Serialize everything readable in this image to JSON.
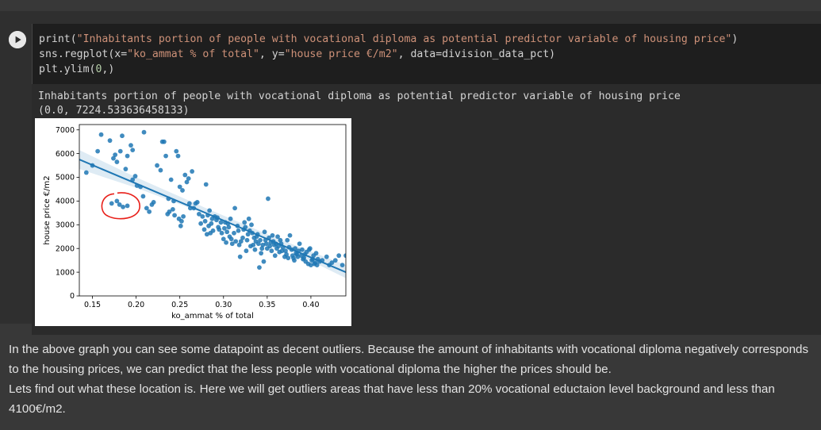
{
  "code_cell": {
    "lines": [
      [
        {
          "t": "print(",
          "c": "plain"
        },
        {
          "t": "\"Inhabitants portion of people with vocational diploma as potential predictor variable of housing price\"",
          "c": "str"
        },
        {
          "t": ")",
          "c": "plain"
        }
      ],
      [
        {
          "t": "sns.regplot(x=",
          "c": "plain"
        },
        {
          "t": "\"ko_ammat % of total\"",
          "c": "str"
        },
        {
          "t": ", y=",
          "c": "plain"
        },
        {
          "t": "\"house price €/m2\"",
          "c": "str"
        },
        {
          "t": ", data=division_data_pct)",
          "c": "plain"
        }
      ],
      [
        {
          "t": "plt.ylim(",
          "c": "plain"
        },
        {
          "t": "0",
          "c": "num"
        },
        {
          "t": ",)",
          "c": "plain"
        }
      ]
    ],
    "run_icon": "play-icon"
  },
  "output": {
    "stdout": "Inhabitants portion of people with vocational diploma as potential predictor variable of housing price",
    "result": "(0.0, 7224.533636458133)"
  },
  "chart_data": {
    "type": "scatter",
    "xlabel": "ko_ammat % of total",
    "ylabel": "house price €/m2",
    "xlim": [
      0.135,
      0.44
    ],
    "ylim": [
      0,
      7224.533636458133
    ],
    "xticks": [
      0.15,
      0.2,
      0.25,
      0.3,
      0.35,
      0.4
    ],
    "xtick_labels": [
      "0.15",
      "0.20",
      "0.25",
      "0.30",
      "0.35",
      "0.40"
    ],
    "yticks": [
      0,
      1000,
      2000,
      3000,
      4000,
      5000,
      6000,
      7000
    ],
    "ytick_labels": [
      "0",
      "1000",
      "2000",
      "3000",
      "4000",
      "5000",
      "6000",
      "7000"
    ],
    "grid": false,
    "point_color": "#1f77b4",
    "line_color": "#1f77b4",
    "ci_color": "#1f77b4",
    "annotation_color": "#e8201a",
    "regression_line": {
      "x": [
        0.135,
        0.44
      ],
      "y": [
        5750,
        1000
      ]
    },
    "ci_band": {
      "x": [
        0.135,
        0.2,
        0.28,
        0.36,
        0.44
      ],
      "upper": [
        6150,
        5000,
        3700,
        2450,
        1300
      ],
      "lower": [
        5350,
        4560,
        3450,
        2200,
        750
      ]
    },
    "points": [
      [
        0.143,
        5200
      ],
      [
        0.15,
        5500
      ],
      [
        0.156,
        6100
      ],
      [
        0.16,
        6800
      ],
      [
        0.17,
        6550
      ],
      [
        0.174,
        5800
      ],
      [
        0.176,
        5950
      ],
      [
        0.178,
        5650
      ],
      [
        0.182,
        6100
      ],
      [
        0.184,
        6750
      ],
      [
        0.188,
        5350
      ],
      [
        0.19,
        5900
      ],
      [
        0.194,
        6350
      ],
      [
        0.196,
        6150
      ],
      [
        0.196,
        4900
      ],
      [
        0.199,
        5050
      ],
      [
        0.201,
        4650
      ],
      [
        0.205,
        4600
      ],
      [
        0.208,
        4200
      ],
      [
        0.209,
        6900
      ],
      [
        0.172,
        3900
      ],
      [
        0.178,
        4000
      ],
      [
        0.181,
        3850
      ],
      [
        0.185,
        3750
      ],
      [
        0.19,
        3800
      ],
      [
        0.212,
        3700
      ],
      [
        0.215,
        3550
      ],
      [
        0.218,
        3850
      ],
      [
        0.22,
        3950
      ],
      [
        0.224,
        5500
      ],
      [
        0.228,
        5300
      ],
      [
        0.23,
        6500
      ],
      [
        0.232,
        6500
      ],
      [
        0.234,
        5900
      ],
      [
        0.236,
        3450
      ],
      [
        0.237,
        4100
      ],
      [
        0.238,
        3550
      ],
      [
        0.24,
        4900
      ],
      [
        0.242,
        3650
      ],
      [
        0.243,
        4000
      ],
      [
        0.244,
        3400
      ],
      [
        0.246,
        6100
      ],
      [
        0.248,
        5900
      ],
      [
        0.249,
        3250
      ],
      [
        0.25,
        4600
      ],
      [
        0.251,
        2950
      ],
      [
        0.252,
        3150
      ],
      [
        0.253,
        4450
      ],
      [
        0.254,
        3350
      ],
      [
        0.256,
        5100
      ],
      [
        0.258,
        4800
      ],
      [
        0.26,
        4950
      ],
      [
        0.261,
        3900
      ],
      [
        0.262,
        3700
      ],
      [
        0.264,
        5250
      ],
      [
        0.266,
        3700
      ],
      [
        0.268,
        3900
      ],
      [
        0.27,
        3950
      ],
      [
        0.272,
        3450
      ],
      [
        0.274,
        3050
      ],
      [
        0.276,
        3350
      ],
      [
        0.278,
        2800
      ],
      [
        0.279,
        3150
      ],
      [
        0.28,
        4700
      ],
      [
        0.281,
        2600
      ],
      [
        0.282,
        3400
      ],
      [
        0.283,
        2950
      ],
      [
        0.284,
        3600
      ],
      [
        0.285,
        2650
      ],
      [
        0.286,
        3050
      ],
      [
        0.287,
        3250
      ],
      [
        0.288,
        2750
      ],
      [
        0.29,
        3350
      ],
      [
        0.292,
        3200
      ],
      [
        0.293,
        3300
      ],
      [
        0.294,
        2900
      ],
      [
        0.295,
        2800
      ],
      [
        0.297,
        3100
      ],
      [
        0.298,
        2650
      ],
      [
        0.3,
        2400
      ],
      [
        0.301,
        2850
      ],
      [
        0.302,
        3100
      ],
      [
        0.303,
        2250
      ],
      [
        0.304,
        2700
      ],
      [
        0.305,
        3050
      ],
      [
        0.306,
        2900
      ],
      [
        0.307,
        2500
      ],
      [
        0.308,
        3250
      ],
      [
        0.309,
        2400
      ],
      [
        0.31,
        2200
      ],
      [
        0.312,
        2650
      ],
      [
        0.313,
        3700
      ],
      [
        0.314,
        2300
      ],
      [
        0.316,
        2950
      ],
      [
        0.317,
        2750
      ],
      [
        0.318,
        2150
      ],
      [
        0.319,
        1650
      ],
      [
        0.32,
        2300
      ],
      [
        0.322,
        2450
      ],
      [
        0.323,
        2800
      ],
      [
        0.324,
        3100
      ],
      [
        0.325,
        2900
      ],
      [
        0.326,
        1900
      ],
      [
        0.327,
        2350
      ],
      [
        0.328,
        2600
      ],
      [
        0.329,
        3250
      ],
      [
        0.33,
        2750
      ],
      [
        0.331,
        2100
      ],
      [
        0.332,
        3000
      ],
      [
        0.333,
        2650
      ],
      [
        0.334,
        2150
      ],
      [
        0.335,
        2450
      ],
      [
        0.336,
        1950
      ],
      [
        0.337,
        2300
      ],
      [
        0.338,
        2500
      ],
      [
        0.339,
        2600
      ],
      [
        0.34,
        2200
      ],
      [
        0.341,
        1200
      ],
      [
        0.342,
        2350
      ],
      [
        0.343,
        1800
      ],
      [
        0.344,
        2000
      ],
      [
        0.345,
        2150
      ],
      [
        0.346,
        1450
      ],
      [
        0.347,
        2700
      ],
      [
        0.348,
        2350
      ],
      [
        0.349,
        2200
      ],
      [
        0.35,
        2000
      ],
      [
        0.351,
        4100
      ],
      [
        0.352,
        2450
      ],
      [
        0.353,
        2100
      ],
      [
        0.354,
        2250
      ],
      [
        0.355,
        1900
      ],
      [
        0.356,
        2550
      ],
      [
        0.357,
        2300
      ],
      [
        0.358,
        2150
      ],
      [
        0.359,
        1700
      ],
      [
        0.36,
        2200
      ],
      [
        0.361,
        2000
      ],
      [
        0.362,
        2500
      ],
      [
        0.363,
        2100
      ],
      [
        0.364,
        1850
      ],
      [
        0.365,
        2350
      ],
      [
        0.366,
        2200
      ],
      [
        0.367,
        1900
      ],
      [
        0.368,
        2050
      ],
      [
        0.37,
        1650
      ],
      [
        0.371,
        1900
      ],
      [
        0.372,
        1750
      ],
      [
        0.373,
        2350
      ],
      [
        0.374,
        1600
      ],
      [
        0.375,
        2050
      ],
      [
        0.376,
        2550
      ],
      [
        0.378,
        1950
      ],
      [
        0.379,
        1700
      ],
      [
        0.38,
        1600
      ],
      [
        0.381,
        1500
      ],
      [
        0.382,
        2000
      ],
      [
        0.383,
        1800
      ],
      [
        0.384,
        1750
      ],
      [
        0.385,
        1650
      ],
      [
        0.386,
        1900
      ],
      [
        0.387,
        2200
      ],
      [
        0.389,
        1700
      ],
      [
        0.39,
        1950
      ],
      [
        0.391,
        1550
      ],
      [
        0.392,
        1600
      ],
      [
        0.393,
        1750
      ],
      [
        0.394,
        1450
      ],
      [
        0.395,
        1850
      ],
      [
        0.397,
        1350
      ],
      [
        0.398,
        1950
      ],
      [
        0.399,
        2000
      ],
      [
        0.4,
        1300
      ],
      [
        0.401,
        1500
      ],
      [
        0.402,
        1550
      ],
      [
        0.403,
        1700
      ],
      [
        0.404,
        1350
      ],
      [
        0.405,
        1400
      ],
      [
        0.406,
        1800
      ],
      [
        0.407,
        1300
      ],
      [
        0.408,
        1550
      ],
      [
        0.41,
        1450
      ],
      [
        0.413,
        1500
      ],
      [
        0.418,
        1650
      ],
      [
        0.421,
        1300
      ],
      [
        0.424,
        1400
      ],
      [
        0.428,
        1500
      ],
      [
        0.432,
        1700
      ],
      [
        0.436,
        1300
      ],
      [
        0.44,
        1700
      ]
    ]
  },
  "markdown": {
    "p1": "In the above graph you can see some datapoint as decent outliers. Because the amount of inhabitants with vocational diploma negatively corresponds to the housing prices, we can predict that the less people with vocational diploma the higher the prices should be.",
    "p2": "Lets find out what these location is. Here we will get outliers areas that have less than 20% vocational eductaion level background and less than 4100€/m2."
  }
}
